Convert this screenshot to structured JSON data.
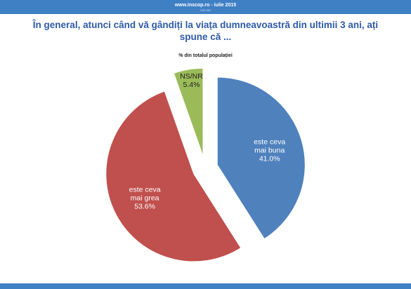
{
  "header": {
    "source_text": "www.inscop.ro  -  iulie 2015",
    "tiny_text": "CSU-BG"
  },
  "question": "În general, atunci când vă gândiți la viața dumneavoastră din ultimii 3 ani, ați spune că ...",
  "colors": {
    "bar": "#3f7fc4",
    "question": "#2e5aa7"
  },
  "chart_data": {
    "type": "pie",
    "title": "În general, atunci când vă gândiți la viața dumneavoastră din ultimii 3 ani, ați spune că ...",
    "subtitle": "% din totalul populației",
    "start_angle_deg": 0,
    "exploded": true,
    "slices": [
      {
        "lines": [
          "este ceva",
          "mai buna",
          "41.0%"
        ],
        "value": 41.0,
        "color": "#4f81bd",
        "text_color": "#ffffff"
      },
      {
        "lines": [
          "este ceva",
          "mai grea",
          "53.6%"
        ],
        "value": 53.6,
        "color": "#c0504d",
        "text_color": "#ffffff"
      },
      {
        "lines": [
          "NS/NR",
          "5.4%"
        ],
        "value": 5.4,
        "color": "#9bbb59",
        "text_color": "#222222"
      }
    ]
  }
}
